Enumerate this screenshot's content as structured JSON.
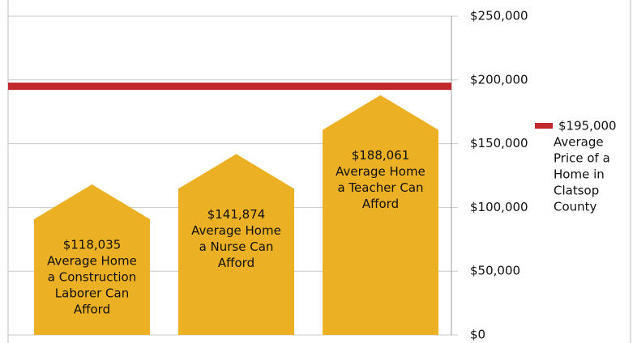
{
  "chart_data": {
    "type": "house-bar",
    "categories": [
      [
        "Average Home",
        "a Construction",
        "Laborer Can",
        "Afford"
      ],
      [
        "Average Home",
        "a Nurse Can",
        "Afford"
      ],
      [
        "Average Home",
        "a Teacher Can",
        "Afford"
      ]
    ],
    "values": [
      118035,
      141874,
      188061
    ],
    "value_labels": [
      "$118,035",
      "$141,874",
      "$188,061"
    ],
    "color": "#ebb023",
    "reference_line": {
      "value": 195000,
      "value_label": "$195,000",
      "label": [
        "Average",
        "Price of a",
        "Home in",
        "Clatsop",
        "County"
      ],
      "color": "#c1272d"
    },
    "ylim": [
      0,
      250000
    ],
    "yticks": [
      {
        "value": 0,
        "label": "$0"
      },
      {
        "value": 50000,
        "label": "$50,000"
      },
      {
        "value": 100000,
        "label": "$100,000"
      },
      {
        "value": 150000,
        "label": "$150,000"
      },
      {
        "value": 200000,
        "label": "$200,000"
      },
      {
        "value": 250000,
        "label": "$250,000"
      }
    ],
    "grid": true
  }
}
